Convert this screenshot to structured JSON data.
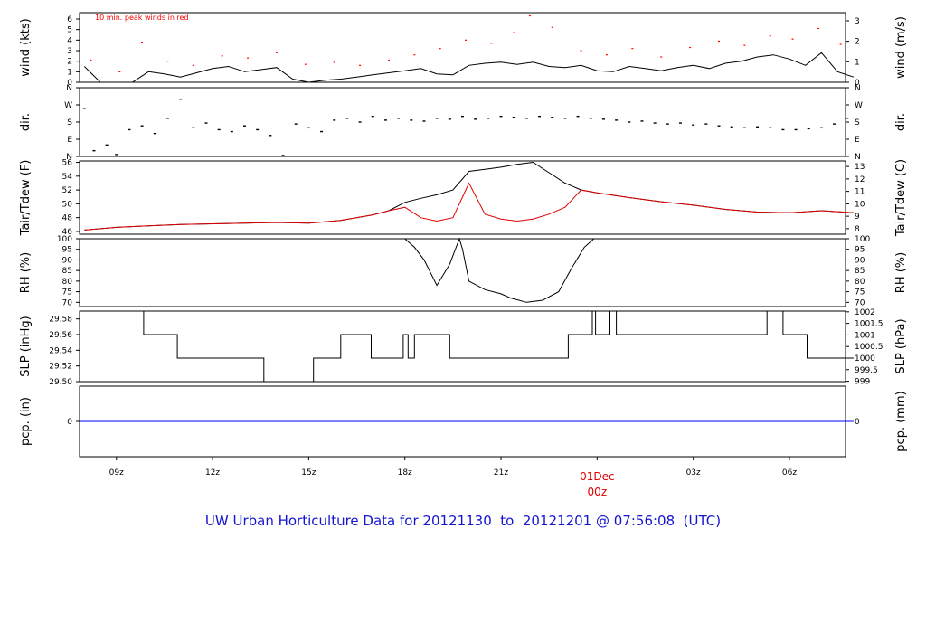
{
  "title": "UW Urban Horticulture Data for 20121130  to  20121201 @ 07:56:08  (UTC)",
  "colors": {
    "title": "#1515d0",
    "peak": "#ff0000",
    "line": "#000000",
    "dew": "#e00000",
    "precip": "#0000ff",
    "day": "#e00000"
  },
  "chart_data": [
    {
      "type": "line",
      "ylabel": "wind (kts)",
      "ylabel_right": "wind (m/s)",
      "ylim": [
        0,
        6.6
      ],
      "yticks": [
        "0",
        "1",
        "2",
        "3",
        "4",
        "5",
        "6"
      ],
      "yticks_right": [
        "0",
        "1",
        "2",
        "3"
      ],
      "annotation": "10 min. peak winds in red",
      "series": [
        {
          "x": [
            8.0,
            8.5,
            9.0,
            9.5,
            10.0,
            10.5,
            11.0,
            11.5,
            12.0,
            12.5,
            13.0,
            13.5,
            14.0,
            14.5,
            15.0,
            15.5,
            16.0,
            16.5,
            17.0,
            17.5,
            18.0,
            18.5,
            19.0,
            19.5,
            20.0,
            20.5,
            21.0,
            21.5,
            22.0,
            22.5,
            23.0,
            23.5,
            24.0,
            24.5,
            25.0,
            25.5,
            26.0,
            26.5,
            27.0,
            27.5,
            28.0,
            28.5,
            29.0,
            29.5,
            30.0,
            30.5,
            31.0,
            31.5,
            32.0
          ],
          "y": [
            1.5,
            0,
            0,
            0,
            1.0,
            0.8,
            0.5,
            0.9,
            1.3,
            1.5,
            1.0,
            1.2,
            1.4,
            0.3,
            0,
            0.2,
            0.3,
            0.5,
            0.7,
            0.9,
            1.1,
            1.3,
            0.8,
            0.7,
            1.6,
            1.8,
            1.9,
            1.7,
            1.9,
            1.5,
            1.4,
            1.6,
            1.1,
            1.0,
            1.5,
            1.3,
            1.1,
            1.4,
            1.6,
            1.3,
            1.8,
            2.0,
            2.4,
            2.6,
            2.2,
            1.6,
            2.8,
            1.0,
            0.5
          ]
        },
        {
          "x": [
            8.2,
            9.1,
            9.8,
            10.6,
            11.4,
            12.3,
            13.1,
            14.0,
            14.9,
            15.8,
            16.6,
            17.5,
            18.3,
            19.1,
            19.9,
            20.7,
            21.4,
            21.9,
            22.6,
            23.5,
            24.3,
            25.1,
            26.0,
            26.9,
            27.8,
            28.6,
            29.4,
            30.1,
            30.9,
            31.6
          ],
          "y": [
            2.1,
            1.0,
            3.8,
            2.0,
            1.6,
            2.5,
            2.3,
            2.8,
            1.7,
            1.9,
            1.6,
            2.1,
            2.6,
            3.2,
            4.0,
            3.7,
            4.7,
            6.3,
            5.2,
            3.0,
            2.6,
            3.2,
            2.4,
            3.3,
            3.9,
            3.5,
            4.4,
            4.1,
            5.1,
            3.6
          ]
        }
      ]
    },
    {
      "type": "scatter",
      "ylabel": "dir.",
      "ylabel_right": "dir.",
      "ylim": [
        0,
        360
      ],
      "yticks": [
        "N",
        "E",
        "S",
        "W",
        "N"
      ],
      "yticks_right": [
        "N",
        "E",
        "S",
        "W",
        "N"
      ],
      "series": [
        {
          "x": [
            8.0,
            8.3,
            8.7,
            9.0,
            9.4,
            9.8,
            10.2,
            10.6,
            11.0,
            11.4,
            11.8,
            12.2,
            12.6,
            13.0,
            13.4,
            13.8,
            14.2,
            14.6,
            15.0,
            15.4,
            15.8,
            16.2,
            16.6,
            17.0,
            17.4,
            17.8,
            18.2,
            18.6,
            19.0,
            19.4,
            19.8,
            20.2,
            20.6,
            21.0,
            21.4,
            21.8,
            22.2,
            22.6,
            23.0,
            23.4,
            23.8,
            24.2,
            24.6,
            25.0,
            25.4,
            25.8,
            26.2,
            26.6,
            27.0,
            27.4,
            27.8,
            28.2,
            28.6,
            29.0,
            29.4,
            29.8,
            30.2,
            30.6,
            31.0,
            31.4,
            31.8
          ],
          "y": [
            250,
            30,
            60,
            10,
            140,
            160,
            120,
            200,
            300,
            150,
            175,
            140,
            130,
            160,
            140,
            110,
            5,
            170,
            150,
            130,
            190,
            200,
            180,
            210,
            190,
            200,
            190,
            185,
            200,
            195,
            210,
            195,
            200,
            210,
            205,
            200,
            210,
            205,
            200,
            210,
            200,
            195,
            190,
            180,
            185,
            175,
            170,
            175,
            165,
            170,
            160,
            155,
            150,
            155,
            150,
            140,
            140,
            145,
            150,
            170,
            200
          ]
        }
      ]
    },
    {
      "type": "line",
      "ylabel": "Tair/Tdew (F)",
      "ylabel_right": "Tair/Tdew (C)",
      "ylim": [
        45.6,
        56.2
      ],
      "yticks": [
        "46",
        "48",
        "50",
        "52",
        "54",
        "56"
      ],
      "yticks_right": [
        "8",
        "9",
        "10",
        "11",
        "12",
        "13"
      ],
      "series": [
        {
          "name": "Tair",
          "x": [
            8.0,
            9.0,
            10.0,
            11.0,
            12.0,
            13.0,
            14.0,
            15.0,
            16.0,
            17.0,
            17.5,
            18.0,
            18.5,
            19.0,
            19.5,
            20.0,
            20.5,
            21.0,
            21.5,
            22.0,
            22.5,
            23.0,
            23.5,
            24.0,
            25.0,
            26.0,
            27.0,
            28.0,
            29.0,
            30.0,
            31.0,
            32.0
          ],
          "y": [
            46.2,
            46.6,
            46.8,
            47.0,
            47.1,
            47.2,
            47.3,
            47.2,
            47.6,
            48.4,
            49.0,
            50.2,
            50.8,
            51.3,
            52.0,
            54.7,
            55.0,
            55.3,
            55.7,
            56.0,
            54.5,
            53.0,
            52.0,
            51.6,
            50.9,
            50.3,
            49.8,
            49.2,
            48.8,
            48.7,
            49.0,
            48.7
          ]
        },
        {
          "name": "Tdew",
          "x": [
            8.0,
            9.0,
            10.0,
            11.0,
            12.0,
            13.0,
            14.0,
            15.0,
            16.0,
            17.0,
            17.5,
            18.0,
            18.5,
            19.0,
            19.5,
            20.0,
            20.5,
            21.0,
            21.5,
            22.0,
            22.5,
            23.0,
            23.5,
            24.0,
            25.0,
            26.0,
            27.0,
            28.0,
            29.0,
            30.0,
            31.0,
            32.0
          ],
          "y": [
            46.2,
            46.6,
            46.8,
            47.0,
            47.1,
            47.2,
            47.3,
            47.2,
            47.6,
            48.4,
            49.0,
            49.5,
            48.0,
            47.5,
            48.0,
            53.0,
            48.5,
            47.8,
            47.5,
            47.8,
            48.5,
            49.5,
            52.0,
            51.6,
            50.9,
            50.3,
            49.8,
            49.2,
            48.8,
            48.7,
            49.0,
            48.7
          ]
        }
      ]
    },
    {
      "type": "line",
      "ylabel": "RH (%)",
      "ylabel_right": "RH (%)",
      "ylim": [
        68,
        100
      ],
      "yticks": [
        "70",
        "75",
        "80",
        "85",
        "90",
        "95",
        "100"
      ],
      "yticks_right": [
        "70",
        "75",
        "80",
        "85",
        "90",
        "95",
        "100"
      ],
      "series": [
        {
          "x": [
            18.0,
            18.3,
            18.6,
            19.0,
            19.4,
            19.7,
            19.8,
            20.0,
            20.5,
            21.0,
            21.3,
            21.8,
            22.3,
            22.8,
            23.2,
            23.6,
            23.9
          ],
          "y": [
            100,
            96,
            90,
            78,
            88,
            100,
            95,
            80,
            76,
            74,
            72,
            70,
            71,
            75,
            86,
            96,
            100
          ]
        }
      ]
    },
    {
      "type": "line",
      "ylabel": "SLP (inHg)",
      "ylabel_right": "SLP (hPa)",
      "ylim": [
        29.5,
        29.59
      ],
      "yticks": [
        "29.50",
        "29.52",
        "29.54",
        "29.56",
        "29.58"
      ],
      "yticks_right": [
        "999",
        "999.5",
        "1000",
        "1000.5",
        "1001",
        "1001.5",
        "1002"
      ],
      "series": [
        {
          "x": [
            7.85,
            9.85,
            9.85,
            10.9,
            10.9,
            13.6,
            13.6,
            15.15,
            15.15,
            16.0,
            16.0,
            16.95,
            16.95,
            17.95,
            17.95,
            18.1,
            18.1,
            18.3,
            18.3,
            19.4,
            19.4,
            21.3,
            21.3,
            23.1,
            23.1,
            23.85,
            23.85,
            23.95,
            23.95,
            24.4,
            24.4,
            24.6,
            24.6,
            29.3,
            29.3,
            29.8,
            29.8,
            30.55,
            30.55,
            32.0
          ],
          "y": [
            29.59,
            29.59,
            29.56,
            29.56,
            29.53,
            29.53,
            29.5,
            29.5,
            29.53,
            29.53,
            29.56,
            29.56,
            29.53,
            29.53,
            29.56,
            29.56,
            29.53,
            29.53,
            29.56,
            29.56,
            29.53,
            29.53,
            29.53,
            29.53,
            29.56,
            29.56,
            29.59,
            29.59,
            29.56,
            29.56,
            29.59,
            29.59,
            29.56,
            29.56,
            29.59,
            29.59,
            29.56,
            29.56,
            29.53,
            29.53
          ]
        }
      ]
    },
    {
      "type": "line",
      "ylabel": "pcp. (in)",
      "ylabel_right": "pcp. (mm)",
      "ylim": [
        -1,
        1
      ],
      "yticks": [
        "0"
      ],
      "yticks_right": [
        "0"
      ],
      "series": [
        {
          "x": [
            7.85,
            32.0
          ],
          "y": [
            0,
            0
          ]
        }
      ]
    }
  ],
  "x_axis": {
    "ticks": [
      {
        "x": 9,
        "label": "09z"
      },
      {
        "x": 12,
        "label": "12z"
      },
      {
        "x": 15,
        "label": "15z"
      },
      {
        "x": 18,
        "label": "18z"
      },
      {
        "x": 21,
        "label": "21z"
      },
      {
        "x": 24,
        "label": ""
      },
      {
        "x": 27,
        "label": "03z"
      },
      {
        "x": 30,
        "label": "06z"
      }
    ],
    "day_label": "01Dec",
    "day_hour": "00z",
    "xlim": [
      7.85,
      31.75
    ]
  }
}
